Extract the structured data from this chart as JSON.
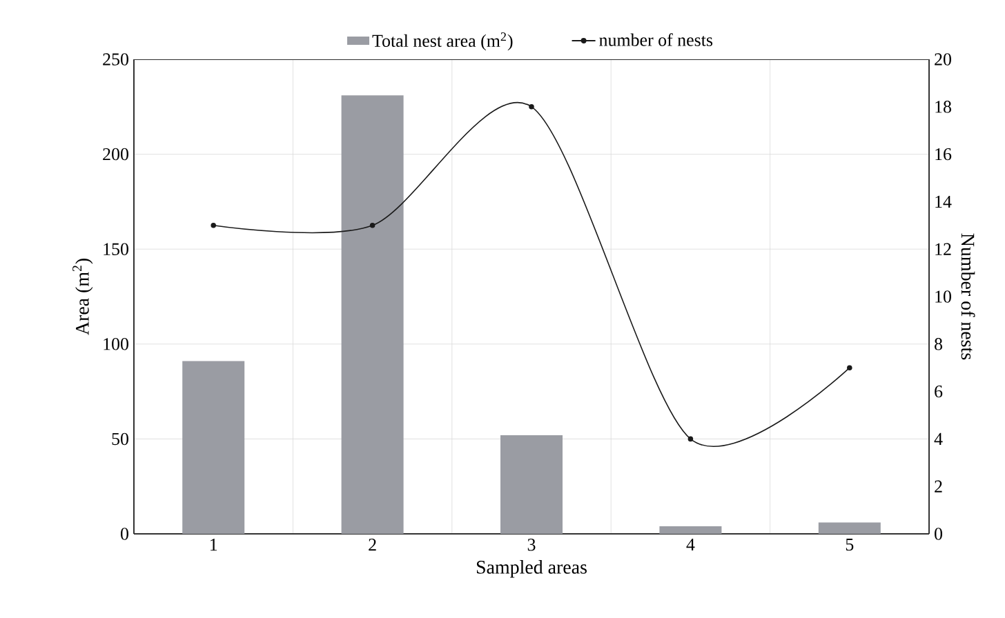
{
  "chart_data": {
    "type": "bar",
    "xlabel": "Sampled areas",
    "ylabel": "Area (m$^{2}$)",
    "y2label": "Number of nests",
    "categories": [
      "1",
      "2",
      "3",
      "4",
      "5"
    ],
    "series": [
      {
        "name": "Total nest area (m$^{2}$)",
        "color": "#9a9ca3",
        "values": [
          91,
          231,
          52,
          4,
          6
        ]
      },
      {
        "name": "number of nests",
        "type": "line",
        "axis": "y2",
        "color": "#1a1a1a",
        "marker": "circle",
        "values": [
          13,
          13,
          18,
          4,
          7
        ]
      }
    ],
    "ylim": [
      0,
      250
    ],
    "yticks": [
      0,
      50,
      100,
      150,
      200,
      250
    ],
    "y2lim": [
      0,
      20
    ],
    "y2ticks": [
      0,
      2,
      4,
      6,
      8,
      10,
      12,
      14,
      16,
      18,
      20
    ],
    "grid": true,
    "legend": "top"
  }
}
